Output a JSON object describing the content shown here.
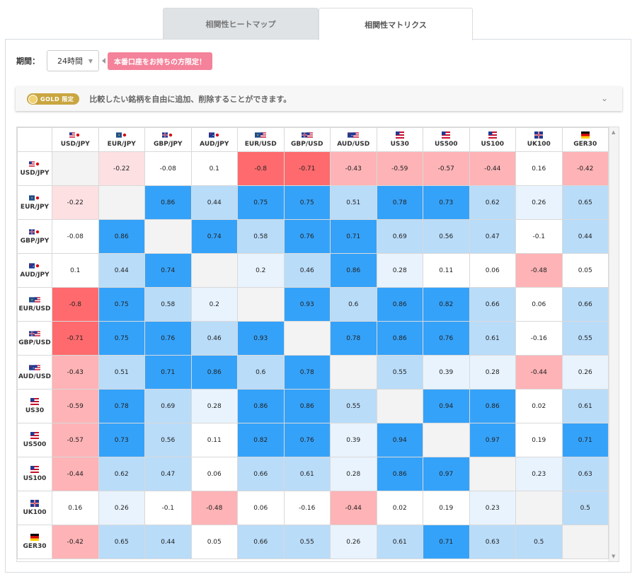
{
  "tabs": [
    {
      "label": "相関性ヒートマップ",
      "active": false
    },
    {
      "label": "相関性マトリクス",
      "active": true
    }
  ],
  "period": {
    "label": "期間：",
    "value": "24時間",
    "promo": "本番口座をお持ちの方限定！"
  },
  "gold": {
    "badge": "GOLD 限定",
    "text": "比較したい銘柄を自由に追加、削除することができます。"
  },
  "colors": {
    "strong_pos": "#35a2f9",
    "mid_pos": "#b9dcf9",
    "weak_pos": "#e8f3fd",
    "neutral": "#ffffff",
    "weak_neg": "#fde0e2",
    "mid_neg": "#feb3b6",
    "strong_neg": "#fe6a6d",
    "diag": "#f3f3f3"
  },
  "matrix": {
    "symbols": [
      {
        "label": "USD/JPY",
        "flag": "us-jp"
      },
      {
        "label": "EUR/JPY",
        "flag": "eu-jp"
      },
      {
        "label": "GBP/JPY",
        "flag": "gb-jp"
      },
      {
        "label": "AUD/JPY",
        "flag": "au-jp"
      },
      {
        "label": "EUR/USD",
        "flag": "eu-us"
      },
      {
        "label": "GBP/USD",
        "flag": "gb-us"
      },
      {
        "label": "AUD/USD",
        "flag": "au-us"
      },
      {
        "label": "US30",
        "flag": "us"
      },
      {
        "label": "US500",
        "flag": "us"
      },
      {
        "label": "US100",
        "flag": "us"
      },
      {
        "label": "UK100",
        "flag": "gb"
      },
      {
        "label": "GER30",
        "flag": "de"
      }
    ],
    "values": [
      [
        null,
        "-0.22",
        "-0.08",
        "0.1",
        "-0.8",
        "-0.71",
        "-0.43",
        "-0.59",
        "-0.57",
        "-0.44",
        "0.16",
        "-0.42"
      ],
      [
        "-0.22",
        null,
        "0.86",
        "0.44",
        "0.75",
        "0.75",
        "0.51",
        "0.78",
        "0.73",
        "0.62",
        "0.26",
        "0.65"
      ],
      [
        "-0.08",
        "0.86",
        null,
        "0.74",
        "0.58",
        "0.76",
        "0.71",
        "0.69",
        "0.56",
        "0.47",
        "-0.1",
        "0.44"
      ],
      [
        "0.1",
        "0.44",
        "0.74",
        null,
        "0.2",
        "0.46",
        "0.86",
        "0.28",
        "0.11",
        "0.06",
        "-0.48",
        "0.05"
      ],
      [
        "-0.8",
        "0.75",
        "0.58",
        "0.2",
        null,
        "0.93",
        "0.6",
        "0.86",
        "0.82",
        "0.66",
        "0.06",
        "0.66"
      ],
      [
        "-0.71",
        "0.75",
        "0.76",
        "0.46",
        "0.93",
        null,
        "0.78",
        "0.86",
        "0.76",
        "0.61",
        "-0.16",
        "0.55"
      ],
      [
        "-0.43",
        "0.51",
        "0.71",
        "0.86",
        "0.6",
        "0.78",
        null,
        "0.55",
        "0.39",
        "0.28",
        "-0.44",
        "0.26"
      ],
      [
        "-0.59",
        "0.78",
        "0.69",
        "0.28",
        "0.86",
        "0.86",
        "0.55",
        null,
        "0.94",
        "0.86",
        "0.02",
        "0.61"
      ],
      [
        "-0.57",
        "0.73",
        "0.56",
        "0.11",
        "0.82",
        "0.76",
        "0.39",
        "0.94",
        null,
        "0.97",
        "0.19",
        "0.71"
      ],
      [
        "-0.44",
        "0.62",
        "0.47",
        "0.06",
        "0.66",
        "0.61",
        "0.28",
        "0.86",
        "0.97",
        null,
        "0.23",
        "0.63"
      ],
      [
        "0.16",
        "0.26",
        "-0.1",
        "-0.48",
        "0.06",
        "-0.16",
        "-0.44",
        "0.02",
        "0.19",
        "0.23",
        null,
        "0.5"
      ],
      [
        "-0.42",
        "0.65",
        "0.44",
        "0.05",
        "0.66",
        "0.55",
        "0.26",
        "0.61",
        "0.71",
        "0.63",
        "0.5",
        null
      ]
    ]
  }
}
